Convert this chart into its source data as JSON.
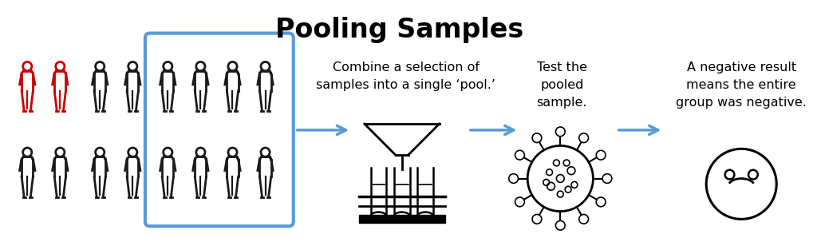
{
  "title": "Pooling Samples",
  "title_fontsize": 24,
  "title_fontweight": "bold",
  "background_color": "#ffffff",
  "arrow_color": "#5b9bd5",
  "box_color": "#5b9bd5",
  "person_color_normal": "#1a1a1a",
  "person_color_red": "#cc0000",
  "text1": "Combine a selection of\nsamples into a single ‘pool.’",
  "text2": "Test the\npooled\nsample.",
  "text3": "A negative result\nmeans the entire\ngroup was negative.",
  "text_fontsize": 11.5
}
